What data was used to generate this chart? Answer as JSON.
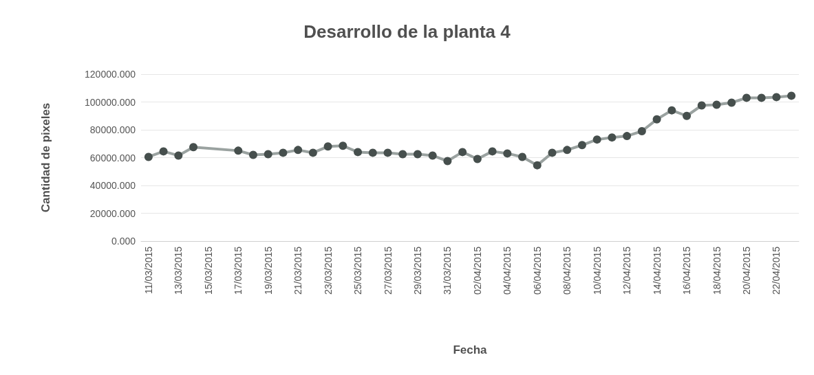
{
  "chart_data": {
    "type": "line",
    "title": "Desarrollo de la planta 4",
    "xlabel": "Fecha",
    "ylabel": "Cantidad de pixeles",
    "x": [
      "2015-03-11",
      "2015-03-12",
      "2015-03-13",
      "2015-03-14",
      "2015-03-17",
      "2015-03-18",
      "2015-03-19",
      "2015-03-20",
      "2015-03-21",
      "2015-03-22",
      "2015-03-23",
      "2015-03-24",
      "2015-03-25",
      "2015-03-26",
      "2015-03-27",
      "2015-03-28",
      "2015-03-29",
      "2015-03-30",
      "2015-03-31",
      "2015-04-01",
      "2015-04-02",
      "2015-04-03",
      "2015-04-04",
      "2015-04-05",
      "2015-04-06",
      "2015-04-07",
      "2015-04-08",
      "2015-04-09",
      "2015-04-10",
      "2015-04-11",
      "2015-04-12",
      "2015-04-13",
      "2015-04-14",
      "2015-04-15",
      "2015-04-16",
      "2015-04-17",
      "2015-04-18",
      "2015-04-19",
      "2015-04-20",
      "2015-04-21",
      "2015-04-22",
      "2015-04-23"
    ],
    "series": [
      {
        "color": "#464f4d",
        "values": [
          60500,
          64500,
          61500,
          67500,
          65000,
          62000,
          62500,
          63500,
          65500,
          63500,
          68000,
          68500,
          64000,
          63500,
          63500,
          62500,
          62500,
          61500,
          57500,
          64000,
          59000,
          64500,
          63000,
          60500,
          54500,
          63500,
          65500,
          69000,
          73000,
          74500,
          75500,
          79000,
          87500,
          94000,
          90000,
          97500,
          98000,
          99500,
          103000,
          103000,
          103500,
          104500
        ]
      }
    ],
    "xlim": [
      "2015-03-10T12:00",
      "2015-04-23T12:00"
    ],
    "xticks": [
      {
        "value": "2015-03-11",
        "label": "11/03/2015"
      },
      {
        "value": "2015-03-13",
        "label": "13/03/2015"
      },
      {
        "value": "2015-03-15",
        "label": "15/03/2015"
      },
      {
        "value": "2015-03-17",
        "label": "17/03/2015"
      },
      {
        "value": "2015-03-19",
        "label": "19/03/2015"
      },
      {
        "value": "2015-03-21",
        "label": "21/03/2015"
      },
      {
        "value": "2015-03-23",
        "label": "23/03/2015"
      },
      {
        "value": "2015-03-25",
        "label": "25/03/2015"
      },
      {
        "value": "2015-03-27",
        "label": "27/03/2015"
      },
      {
        "value": "2015-03-29",
        "label": "29/03/2015"
      },
      {
        "value": "2015-03-31",
        "label": "31/03/2015"
      },
      {
        "value": "2015-04-02",
        "label": "02/04/2015"
      },
      {
        "value": "2015-04-04",
        "label": "04/04/2015"
      },
      {
        "value": "2015-04-06",
        "label": "06/04/2015"
      },
      {
        "value": "2015-04-08",
        "label": "08/04/2015"
      },
      {
        "value": "2015-04-10",
        "label": "10/04/2015"
      },
      {
        "value": "2015-04-12",
        "label": "12/04/2015"
      },
      {
        "value": "2015-04-14",
        "label": "14/04/2015"
      },
      {
        "value": "2015-04-16",
        "label": "16/04/2015"
      },
      {
        "value": "2015-04-18",
        "label": "18/04/2015"
      },
      {
        "value": "2015-04-20",
        "label": "20/04/2015"
      },
      {
        "value": "2015-04-22",
        "label": "22/04/2015"
      }
    ],
    "ylim": [
      0,
      120000
    ],
    "yticks": [
      {
        "value": 0,
        "label": "0.000"
      },
      {
        "value": 20000,
        "label": "20000.000"
      },
      {
        "value": 40000,
        "label": "40000.000"
      },
      {
        "value": 60000,
        "label": "60000.000"
      },
      {
        "value": 80000,
        "label": "80000.000"
      },
      {
        "value": 100000,
        "label": "100000.000"
      },
      {
        "value": 120000,
        "label": "120000.000"
      }
    ],
    "grid": "y",
    "marker": "circle",
    "line_style": "solid"
  }
}
